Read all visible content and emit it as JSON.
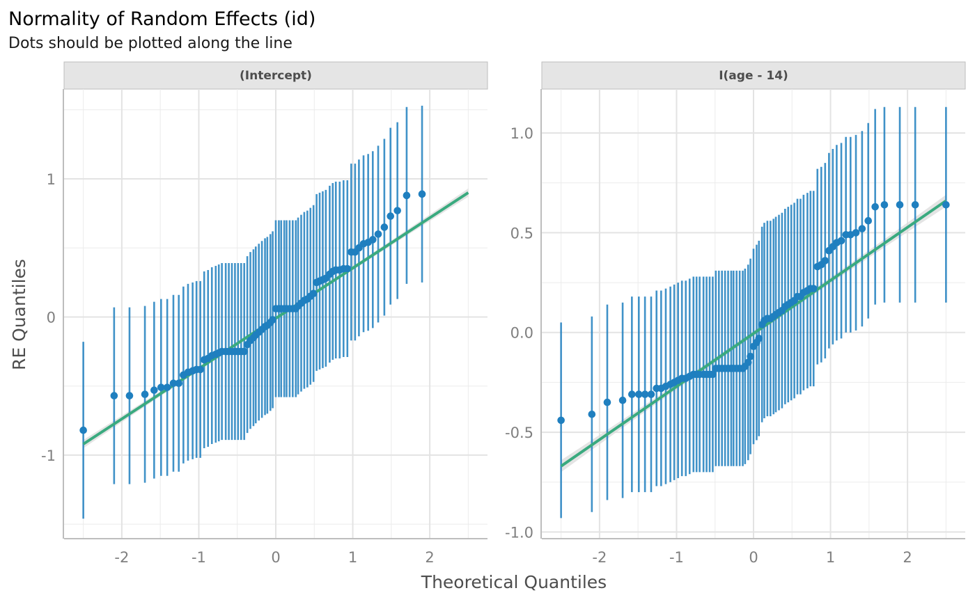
{
  "chart_data": {
    "type": "scatter",
    "title": "Normality of Random Effects (id)",
    "subtitle": "Dots should be plotted along the line",
    "xlabel": "Theoretical Quantiles",
    "ylabel": "RE Quantiles",
    "grid": true,
    "colors": {
      "points": "#1f7fbf",
      "errorbars": "#1f7fbf",
      "line": "#3aaa7f",
      "band": "#d9d9d9",
      "strip": "#e5e5e5"
    },
    "x_groups": [
      {
        "x": [
          -2.5,
          -2.1,
          -1.9,
          -1.7,
          -1.58,
          -1.49,
          -1.41,
          -1.33,
          -1.26,
          -1.2,
          -1.14,
          -1.08,
          -1.03,
          -0.98,
          -0.93,
          -0.88,
          -0.83,
          -0.78,
          -0.74,
          -0.7,
          -0.65,
          -0.61,
          -0.57,
          -0.53,
          -0.49,
          -0.45,
          -0.41,
          -0.37,
          -0.33,
          -0.29,
          -0.26,
          -0.22,
          -0.18,
          -0.14,
          -0.11,
          -0.07,
          -0.04,
          0.0,
          0.04,
          0.07,
          0.11,
          0.14,
          0.18,
          0.22,
          0.26,
          0.29,
          0.33,
          0.37,
          0.41,
          0.45,
          0.49,
          0.53,
          0.57,
          0.61,
          0.65,
          0.7,
          0.74,
          0.78,
          0.83,
          0.88,
          0.93,
          0.98,
          1.03,
          1.08,
          1.14,
          1.2,
          1.26,
          1.33,
          1.41,
          1.49,
          1.58,
          1.7,
          1.9,
          2.1,
          2.5
        ]
      }
    ],
    "panels": [
      {
        "strip": "(Intercept)",
        "xlim": [
          -2.75,
          2.75
        ],
        "ylim": [
          -1.6,
          1.65
        ],
        "x_ticks": [
          "-2",
          "-1",
          "0",
          "1",
          "2"
        ],
        "x_tick_values": [
          -2,
          -1,
          0,
          1,
          2
        ],
        "y_ticks": [
          "-1",
          "0",
          "1"
        ],
        "y_tick_values": [
          -1,
          0,
          1
        ],
        "ref_line": {
          "x": [
            -2.5,
            2.5
          ],
          "y": [
            -0.92,
            0.9
          ]
        },
        "y": [
          -0.82,
          -0.57,
          -0.57,
          -0.56,
          -0.53,
          -0.51,
          -0.51,
          -0.48,
          -0.48,
          -0.42,
          -0.4,
          -0.39,
          -0.38,
          -0.38,
          -0.31,
          -0.3,
          -0.28,
          -0.27,
          -0.26,
          -0.25,
          -0.25,
          -0.25,
          -0.25,
          -0.25,
          -0.25,
          -0.25,
          -0.25,
          -0.2,
          -0.17,
          -0.15,
          -0.13,
          -0.11,
          -0.09,
          -0.07,
          -0.06,
          -0.04,
          -0.02,
          0.06,
          0.06,
          0.06,
          0.06,
          0.06,
          0.06,
          0.06,
          0.06,
          0.08,
          0.1,
          0.12,
          0.13,
          0.15,
          0.17,
          0.25,
          0.26,
          0.27,
          0.28,
          0.31,
          0.33,
          0.34,
          0.34,
          0.35,
          0.35,
          0.47,
          0.47,
          0.5,
          0.53,
          0.54,
          0.56,
          0.6,
          0.65,
          0.73,
          0.77,
          0.88,
          0.89
        ],
        "ci_half": [
          0.64,
          0.64,
          0.64,
          0.64,
          0.64,
          0.64,
          0.64,
          0.64,
          0.64,
          0.64,
          0.64,
          0.64,
          0.64,
          0.64,
          0.64,
          0.64,
          0.64,
          0.64,
          0.64,
          0.64,
          0.64,
          0.64,
          0.64,
          0.64,
          0.64,
          0.64,
          0.64,
          0.64,
          0.64,
          0.64,
          0.64,
          0.64,
          0.64,
          0.64,
          0.64,
          0.64,
          0.64,
          0.64,
          0.64,
          0.64,
          0.64,
          0.64,
          0.64,
          0.64,
          0.64,
          0.64,
          0.64,
          0.64,
          0.64,
          0.64,
          0.64,
          0.64,
          0.64,
          0.64,
          0.64,
          0.64,
          0.64,
          0.64,
          0.64,
          0.64,
          0.64,
          0.64,
          0.64,
          0.64,
          0.64,
          0.64,
          0.64,
          0.64,
          0.64,
          0.64,
          0.64,
          0.64,
          0.64,
          0.64,
          0.64
        ]
      },
      {
        "strip": "I(age - 14)",
        "xlim": [
          -2.75,
          2.75
        ],
        "ylim": [
          -1.03,
          1.22
        ],
        "x_ticks": [
          "-2",
          "-1",
          "0",
          "1",
          "2"
        ],
        "x_tick_values": [
          -2,
          -1,
          0,
          1,
          2
        ],
        "y_ticks": [
          "-1.0",
          "-0.5",
          "0.0",
          "0.5",
          "1.0"
        ],
        "y_tick_values": [
          -1.0,
          -0.5,
          0.0,
          0.5,
          1.0
        ],
        "ref_line": {
          "x": [
            -2.5,
            2.5
          ],
          "y": [
            -0.67,
            0.66
          ]
        },
        "y": [
          -0.44,
          -0.41,
          -0.35,
          -0.34,
          -0.31,
          -0.31,
          -0.31,
          -0.31,
          -0.28,
          -0.28,
          -0.27,
          -0.26,
          -0.25,
          -0.24,
          -0.23,
          -0.23,
          -0.22,
          -0.21,
          -0.21,
          -0.21,
          -0.21,
          -0.21,
          -0.21,
          -0.21,
          -0.18,
          -0.18,
          -0.18,
          -0.18,
          -0.18,
          -0.18,
          -0.18,
          -0.18,
          -0.18,
          -0.18,
          -0.17,
          -0.15,
          -0.12,
          -0.07,
          -0.05,
          -0.03,
          0.04,
          0.06,
          0.07,
          0.07,
          0.08,
          0.09,
          0.1,
          0.11,
          0.13,
          0.14,
          0.15,
          0.16,
          0.18,
          0.18,
          0.2,
          0.21,
          0.22,
          0.22,
          0.33,
          0.34,
          0.36,
          0.41,
          0.43,
          0.45,
          0.46,
          0.49,
          0.49,
          0.5,
          0.52,
          0.56,
          0.63,
          0.64,
          0.64,
          0.64,
          0.64
        ],
        "ci_half": [
          0.49,
          0.49,
          0.49,
          0.49,
          0.49,
          0.49,
          0.49,
          0.49,
          0.49,
          0.49,
          0.49,
          0.49,
          0.49,
          0.49,
          0.49,
          0.49,
          0.49,
          0.49,
          0.49,
          0.49,
          0.49,
          0.49,
          0.49,
          0.49,
          0.49,
          0.49,
          0.49,
          0.49,
          0.49,
          0.49,
          0.49,
          0.49,
          0.49,
          0.49,
          0.49,
          0.49,
          0.49,
          0.49,
          0.49,
          0.49,
          0.49,
          0.49,
          0.49,
          0.49,
          0.49,
          0.49,
          0.49,
          0.49,
          0.49,
          0.49,
          0.49,
          0.49,
          0.49,
          0.49,
          0.49,
          0.49,
          0.49,
          0.49,
          0.49,
          0.49,
          0.49,
          0.49,
          0.49,
          0.49,
          0.49,
          0.49,
          0.49,
          0.49,
          0.49,
          0.49,
          0.49,
          0.49,
          0.49,
          0.49,
          0.49
        ]
      }
    ]
  }
}
